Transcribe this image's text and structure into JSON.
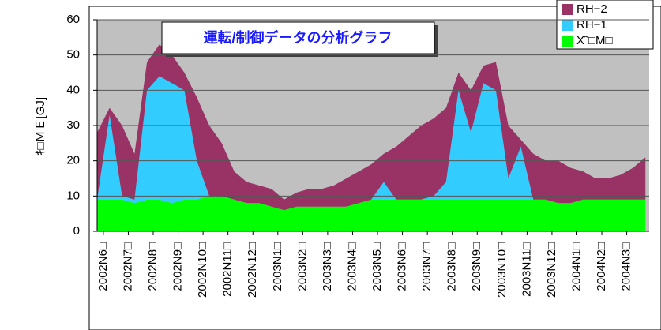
{
  "chart_data": {
    "type": "stacked_area",
    "title": "運転/制御データの分析グラフ",
    "y_label": "ｷ□ＭＥ[GJ]",
    "x": [
      -0.25,
      0.25,
      0.75,
      1.25,
      1.75,
      2.25,
      2.75,
      3.25,
      3.75,
      4.25,
      4.75,
      5.25,
      5.75,
      6.25,
      6.75,
      7.25,
      7.75,
      8.25,
      8.75,
      9.25,
      9.75,
      10.25,
      10.75,
      11.25,
      11.75,
      12.25,
      12.75,
      13.25,
      13.75,
      14.25,
      14.75,
      15.25,
      15.75,
      16.25,
      16.75,
      17.25,
      17.75,
      18.25,
      18.75,
      19.25,
      19.75,
      20.25,
      20.75,
      21.25,
      21.75
    ],
    "series": [
      {
        "name": "X˜□M□",
        "color": "#00ff00",
        "values": [
          9,
          9,
          9,
          8,
          9,
          9,
          8,
          9,
          9,
          10,
          10,
          9,
          8,
          8,
          7,
          6,
          7,
          7,
          7,
          7,
          7,
          8,
          9,
          9,
          9,
          9,
          9,
          9,
          9,
          9,
          9,
          9,
          9,
          9,
          9,
          9,
          9,
          8,
          8,
          9,
          9,
          9,
          9,
          9,
          9
        ]
      },
      {
        "name": "RH−1",
        "color": "#33ccff",
        "values": [
          0,
          24,
          1,
          1,
          31,
          35,
          34,
          31,
          11,
          0,
          0,
          0,
          0,
          0,
          0,
          0,
          0,
          0,
          0,
          0,
          0,
          0,
          0,
          5,
          0,
          0,
          0,
          1,
          5,
          31,
          19,
          33,
          31,
          6,
          15,
          0,
          0,
          0,
          0,
          0,
          0,
          0,
          0,
          0,
          0
        ]
      },
      {
        "name": "RH−2",
        "color": "#993366",
        "values": [
          19,
          2,
          20,
          13,
          8,
          9,
          8,
          5,
          18,
          20,
          15,
          8,
          6,
          5,
          5,
          3,
          4,
          5,
          5,
          6,
          8,
          9,
          10,
          8,
          15,
          18,
          21,
          22,
          21,
          5,
          12,
          5,
          8,
          15,
          2,
          13,
          11,
          12,
          10,
          8,
          6,
          6,
          7,
          9,
          12
        ]
      }
    ],
    "xlim": [
      -0.25,
      21.9
    ],
    "xticks": [
      {
        "value": 0,
        "label": "2002N6□"
      },
      {
        "value": 1,
        "label": "2002N7□"
      },
      {
        "value": 2,
        "label": "2002N8□"
      },
      {
        "value": 3,
        "label": "2002N9□"
      },
      {
        "value": 4,
        "label": "2002N10□"
      },
      {
        "value": 5,
        "label": "2002N11□"
      },
      {
        "value": 6,
        "label": "2002N12□"
      },
      {
        "value": 7,
        "label": "2003N1□"
      },
      {
        "value": 8,
        "label": "2003N2□"
      },
      {
        "value": 9,
        "label": "2003N3□"
      },
      {
        "value": 10,
        "label": "2003N4□"
      },
      {
        "value": 11,
        "label": "2003N5□"
      },
      {
        "value": 12,
        "label": "2003N6□"
      },
      {
        "value": 13,
        "label": "2003N7□"
      },
      {
        "value": 14,
        "label": "2003N8□"
      },
      {
        "value": 15,
        "label": "2003N9□"
      },
      {
        "value": 16,
        "label": "2003N10□"
      },
      {
        "value": 17,
        "label": "2003N11□"
      },
      {
        "value": 18,
        "label": "2003N12□"
      },
      {
        "value": 19,
        "label": "2004N1□"
      },
      {
        "value": 20,
        "label": "2004N2□"
      },
      {
        "value": 21,
        "label": "2004N3□"
      }
    ],
    "ylim": [
      0,
      60
    ],
    "yticks": [
      0,
      10,
      20,
      30,
      40,
      50,
      60
    ],
    "grid": true
  }
}
